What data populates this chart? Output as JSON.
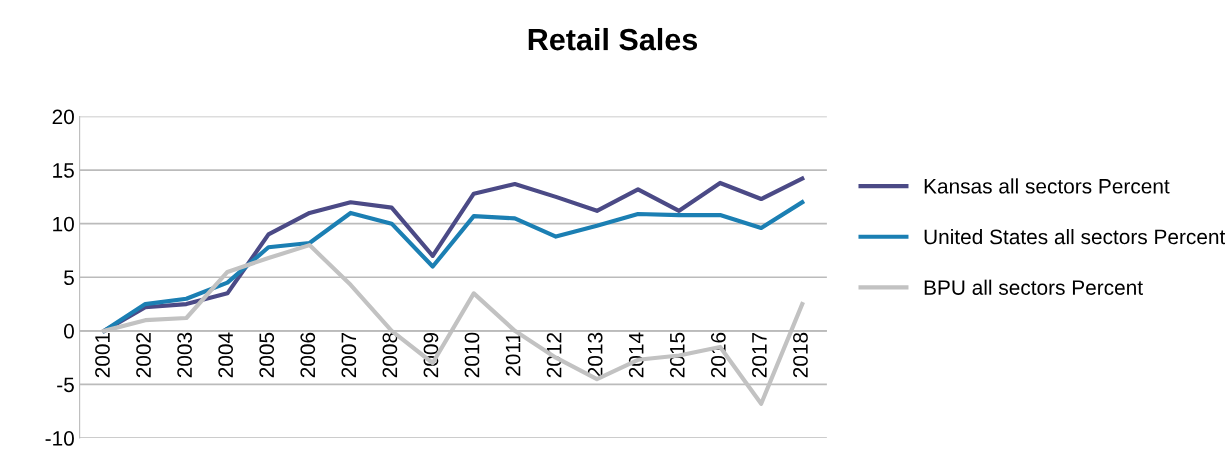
{
  "chart_data": {
    "type": "line",
    "title": "Retail Sales",
    "categories": [
      "2001",
      "2002",
      "2003",
      "2004",
      "2005",
      "2006",
      "2007",
      "2008",
      "2009",
      "2010",
      "2011",
      "2012",
      "2013",
      "2014",
      "2015",
      "2016",
      "2017",
      "2018"
    ],
    "series": [
      {
        "name": "Kansas all sectors Percent",
        "color": "#4b4a86",
        "values": [
          0,
          2.2,
          2.5,
          3.5,
          9,
          11,
          12,
          11.5,
          7,
          12.8,
          13.7,
          12.5,
          11.2,
          13.2,
          11.2,
          13.8,
          12.3,
          14.2
        ]
      },
      {
        "name": "United States all sectors Percent",
        "color": "#1b7fb3",
        "values": [
          0,
          2.5,
          3,
          4.5,
          7.8,
          8.2,
          11,
          10,
          6,
          10.7,
          10.5,
          8.8,
          9.8,
          10.9,
          10.8,
          10.8,
          9.6,
          12
        ]
      },
      {
        "name": "BPU all sectors Percent",
        "color": "#c2c2c2",
        "values": [
          0,
          1,
          1.2,
          5.5,
          6.8,
          8,
          4.3,
          0,
          -3,
          3.5,
          0,
          -2.5,
          -4.5,
          -2.7,
          -2.3,
          -1.5,
          -6.8,
          2.5
        ]
      }
    ],
    "ylim": [
      -10,
      20
    ],
    "yticks": [
      -10,
      -5,
      0,
      5,
      10,
      15,
      20
    ],
    "grid": "y",
    "legend": "right",
    "marker": "none",
    "line_style": "solid"
  }
}
